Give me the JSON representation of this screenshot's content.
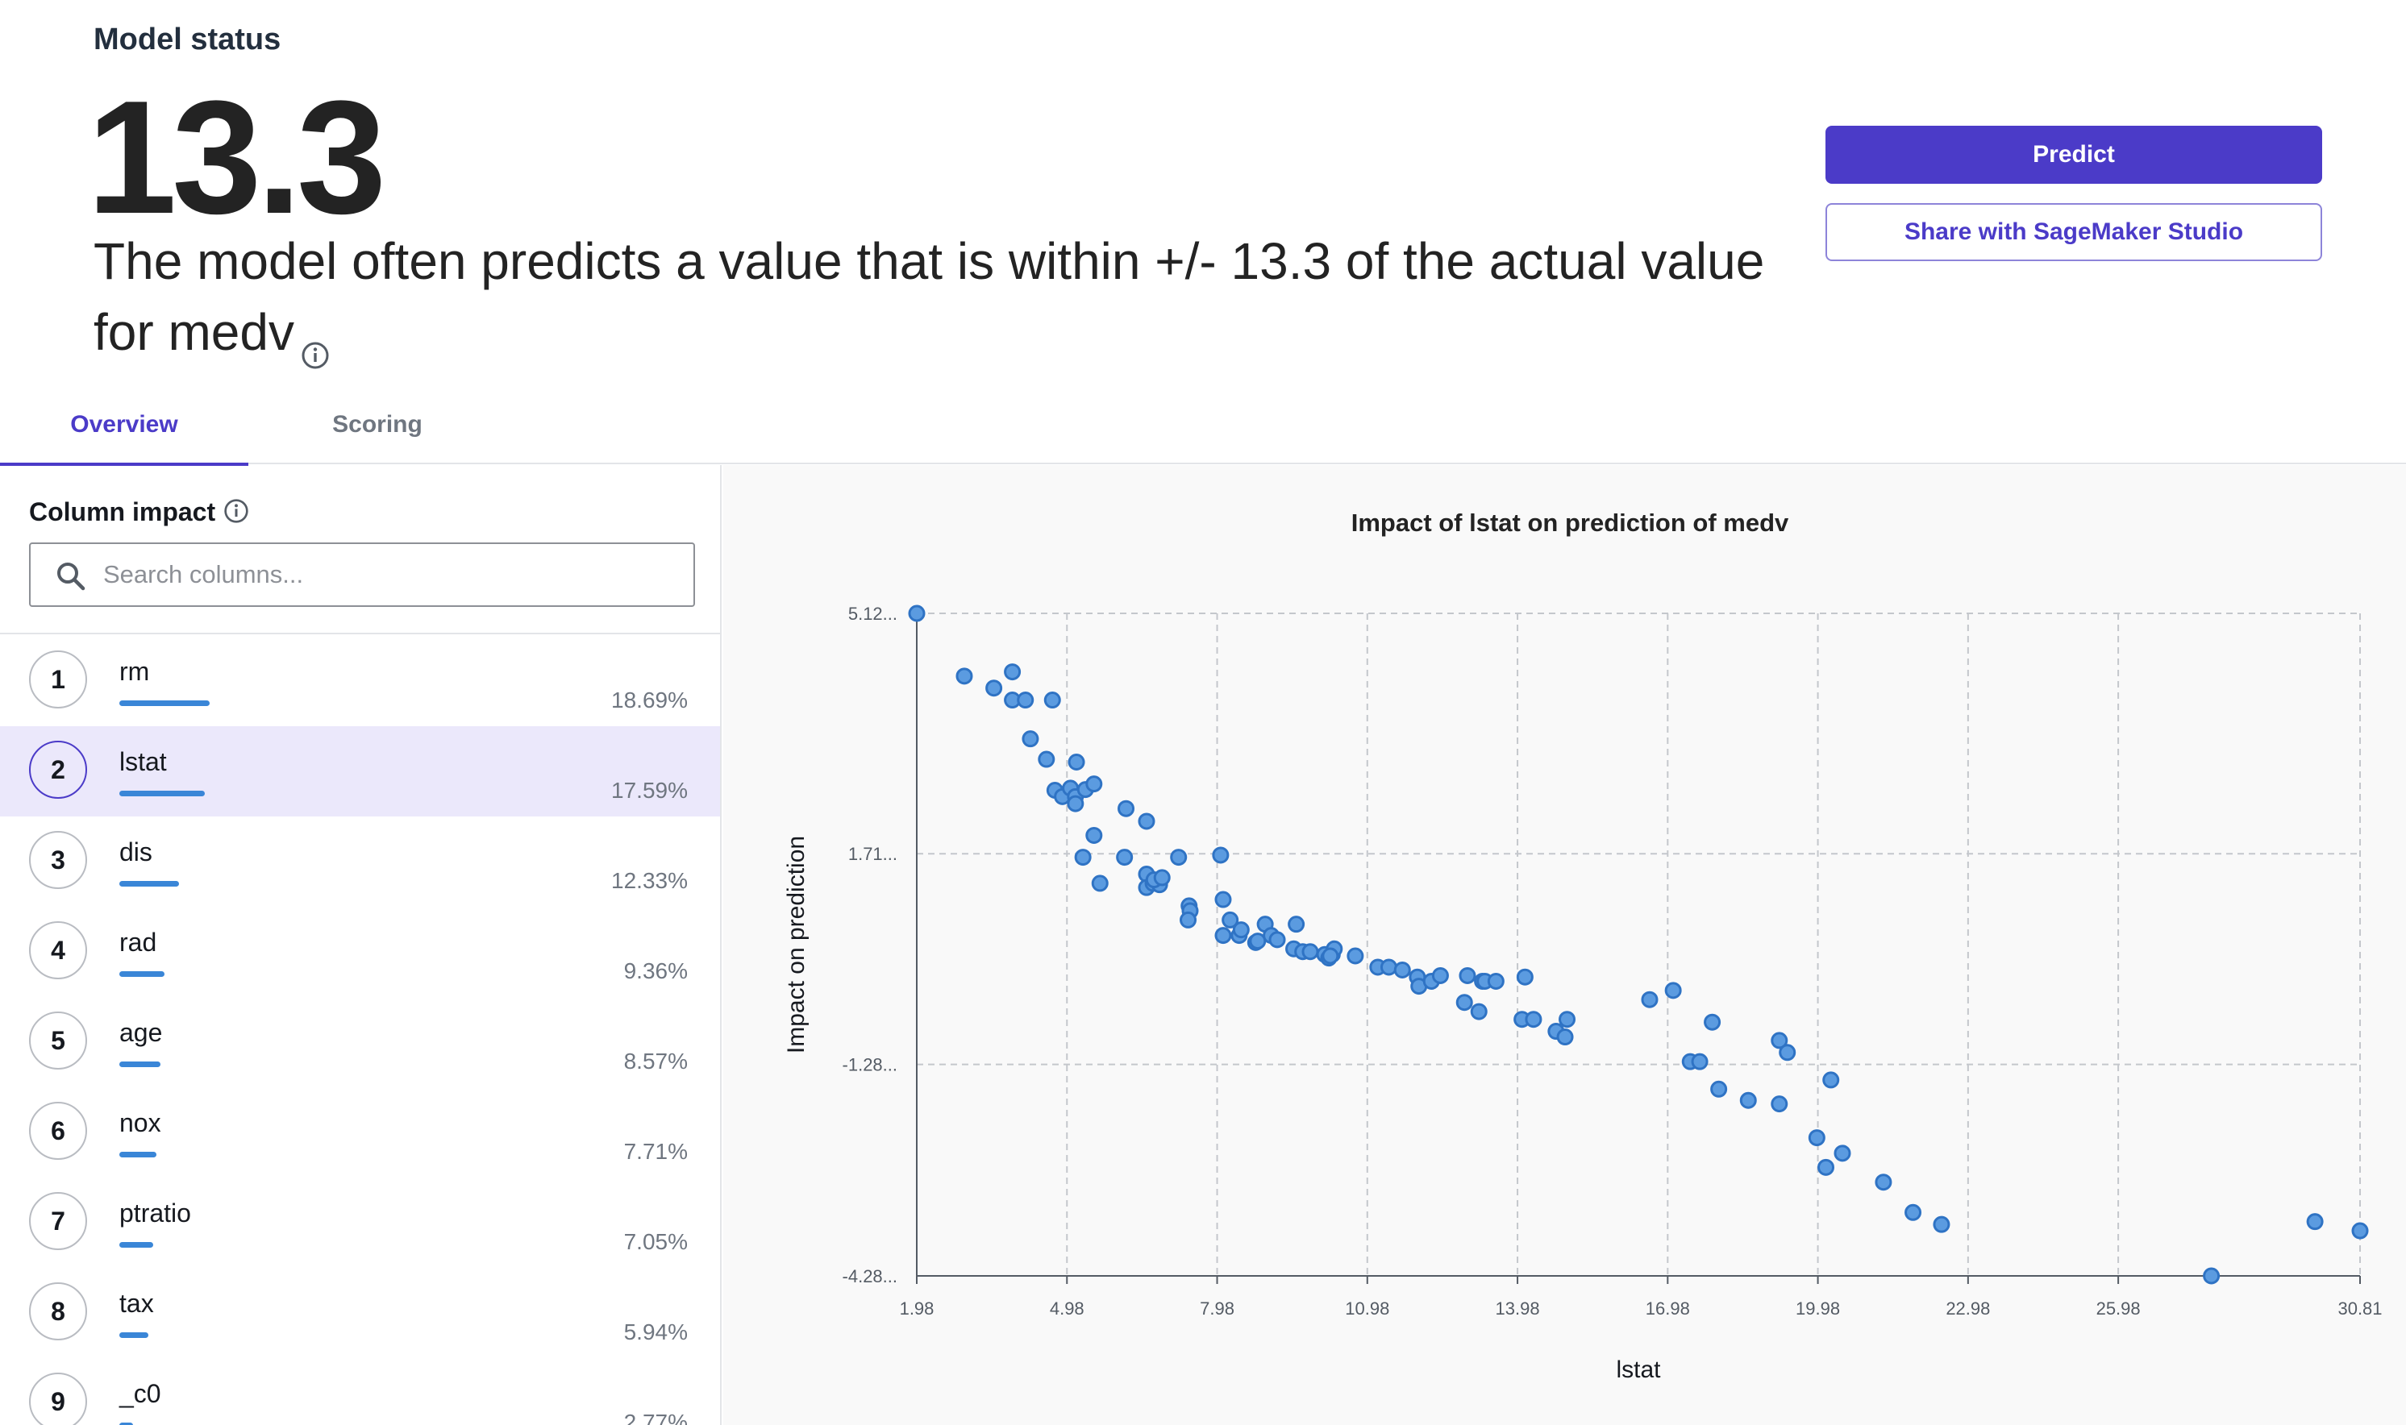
{
  "header": {
    "status_label": "Model status",
    "metric_value": "13.3",
    "description": "The model often predicts a value that is within +/- 13.3 of the actual value for medv",
    "predict_label": "Predict",
    "share_label": "Share with SageMaker Studio"
  },
  "tabs": [
    {
      "label": "Overview",
      "active": true
    },
    {
      "label": "Scoring",
      "active": false
    }
  ],
  "column_impact": {
    "title": "Column impact",
    "search_placeholder": "Search columns...",
    "bar_color": "#3a86d7",
    "items": [
      {
        "rank": "1",
        "name": "rm",
        "percent": "18.69%",
        "value": 18.69
      },
      {
        "rank": "2",
        "name": "lstat",
        "percent": "17.59%",
        "value": 17.59
      },
      {
        "rank": "3",
        "name": "dis",
        "percent": "12.33%",
        "value": 12.33
      },
      {
        "rank": "4",
        "name": "rad",
        "percent": "9.36%",
        "value": 9.36
      },
      {
        "rank": "5",
        "name": "age",
        "percent": "8.57%",
        "value": 8.57
      },
      {
        "rank": "6",
        "name": "nox",
        "percent": "7.71%",
        "value": 7.71
      },
      {
        "rank": "7",
        "name": "ptratio",
        "percent": "7.05%",
        "value": 7.05
      },
      {
        "rank": "8",
        "name": "tax",
        "percent": "5.94%",
        "value": 5.94
      },
      {
        "rank": "9",
        "name": "_c0",
        "percent": "2.77%",
        "value": 2.77
      }
    ]
  },
  "accent_color": "#4b3bc8",
  "chart_data": {
    "type": "scatter",
    "title": "Impact of lstat on prediction of medv",
    "xlabel": "lstat",
    "ylabel": "Impact on prediction",
    "x_ticks": [
      "1.98",
      "4.98",
      "7.98",
      "10.98",
      "13.98",
      "16.98",
      "19.98",
      "22.98",
      "25.98",
      "30.81"
    ],
    "x_tick_values": [
      1.98,
      4.98,
      7.98,
      10.98,
      13.98,
      16.98,
      19.98,
      22.98,
      25.98,
      30.81
    ],
    "y_ticks": [
      "5.12...",
      "1.71...",
      "-1.28...",
      "-4.28..."
    ],
    "y_tick_values": [
      5.12,
      1.71,
      -1.28,
      -4.28
    ],
    "xlim": [
      1.98,
      30.81
    ],
    "ylim": [
      -4.28,
      5.12
    ],
    "grid": true,
    "point_color": "#5b9be0",
    "series": [
      {
        "points": [
          [
            1.98,
            5.12
          ],
          [
            2.93,
            4.23
          ],
          [
            3.52,
            4.06
          ],
          [
            3.89,
            4.29
          ],
          [
            3.89,
            3.89
          ],
          [
            4.15,
            3.89
          ],
          [
            4.69,
            3.89
          ],
          [
            4.25,
            3.34
          ],
          [
            4.57,
            3.05
          ],
          [
            5.17,
            3.01
          ],
          [
            4.74,
            2.61
          ],
          [
            4.89,
            2.52
          ],
          [
            5.05,
            2.64
          ],
          [
            5.15,
            2.52
          ],
          [
            5.15,
            2.42
          ],
          [
            5.35,
            2.62
          ],
          [
            5.52,
            2.7
          ],
          [
            5.3,
            1.66
          ],
          [
            5.52,
            1.97
          ],
          [
            5.64,
            1.29
          ],
          [
            6.16,
            2.35
          ],
          [
            6.13,
            1.66
          ],
          [
            6.57,
            2.17
          ],
          [
            6.57,
            1.42
          ],
          [
            6.57,
            1.23
          ],
          [
            6.7,
            1.29
          ],
          [
            6.83,
            1.27
          ],
          [
            6.72,
            1.34
          ],
          [
            6.88,
            1.37
          ],
          [
            7.21,
            1.66
          ],
          [
            8.05,
            1.69
          ],
          [
            8.1,
            1.06
          ],
          [
            7.42,
            0.97
          ],
          [
            7.44,
            0.9
          ],
          [
            7.4,
            0.77
          ],
          [
            8.1,
            0.55
          ],
          [
            8.24,
            0.77
          ],
          [
            8.42,
            0.55
          ],
          [
            8.46,
            0.63
          ],
          [
            8.75,
            0.45
          ],
          [
            8.79,
            0.47
          ],
          [
            8.94,
            0.71
          ],
          [
            9.06,
            0.55
          ],
          [
            9.18,
            0.49
          ],
          [
            9.56,
            0.71
          ],
          [
            9.51,
            0.36
          ],
          [
            9.69,
            0.32
          ],
          [
            9.84,
            0.32
          ],
          [
            10.13,
            0.28
          ],
          [
            10.21,
            0.23
          ],
          [
            10.28,
            0.28
          ],
          [
            10.32,
            0.36
          ],
          [
            10.24,
            0.26
          ],
          [
            10.74,
            0.26
          ],
          [
            11.19,
            0.1
          ],
          [
            11.41,
            0.1
          ],
          [
            11.68,
            0.06
          ],
          [
            11.98,
            -0.04
          ],
          [
            12.01,
            -0.17
          ],
          [
            12.26,
            -0.1
          ],
          [
            12.44,
            -0.02
          ],
          [
            12.92,
            -0.4
          ],
          [
            12.98,
            -0.02
          ],
          [
            13.28,
            -0.1
          ],
          [
            13.33,
            -0.1
          ],
          [
            13.21,
            -0.53
          ],
          [
            13.55,
            -0.1
          ],
          [
            14.07,
            -0.64
          ],
          [
            14.13,
            -0.04
          ],
          [
            14.3,
            -0.64
          ],
          [
            14.75,
            -0.81
          ],
          [
            14.97,
            -0.64
          ],
          [
            14.93,
            -0.89
          ],
          [
            16.62,
            -0.36
          ],
          [
            17.09,
            -0.23
          ],
          [
            17.43,
            -1.24
          ],
          [
            17.62,
            -1.24
          ],
          [
            17.87,
            -0.68
          ],
          [
            18.0,
            -1.63
          ],
          [
            18.59,
            -1.79
          ],
          [
            19.21,
            -0.94
          ],
          [
            19.21,
            -1.84
          ],
          [
            19.37,
            -1.11
          ],
          [
            19.96,
            -2.32
          ],
          [
            20.14,
            -2.74
          ],
          [
            20.24,
            -1.5
          ],
          [
            20.47,
            -2.54
          ],
          [
            21.29,
            -2.95
          ],
          [
            21.88,
            -3.38
          ],
          [
            22.45,
            -3.55
          ],
          [
            27.84,
            -4.28
          ],
          [
            29.91,
            -3.51
          ],
          [
            30.81,
            -3.64
          ]
        ]
      }
    ]
  }
}
